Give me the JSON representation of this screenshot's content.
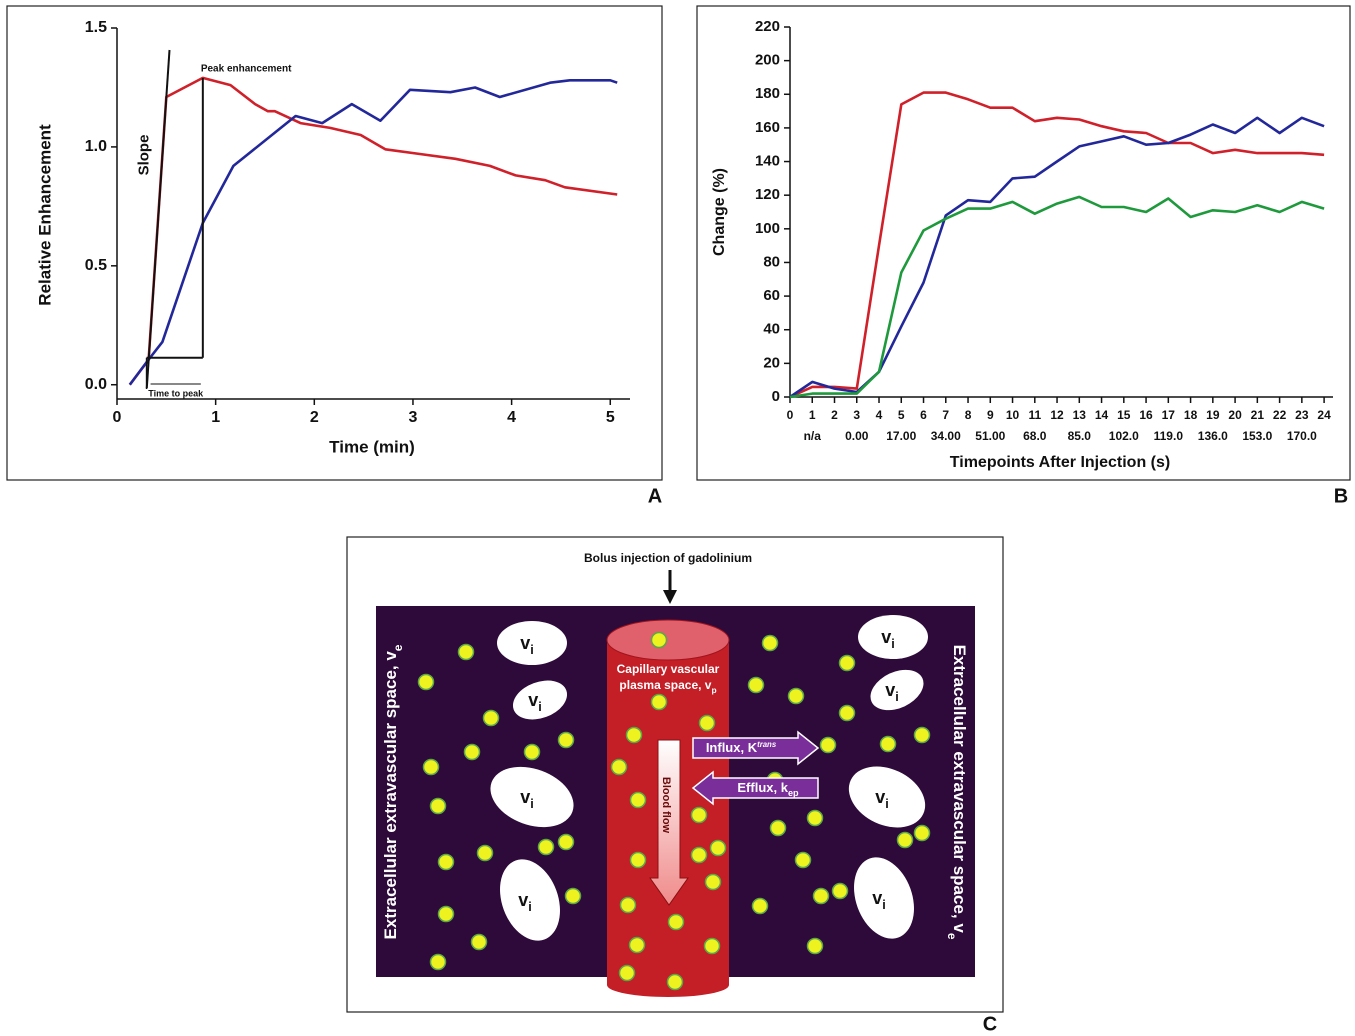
{
  "chart_data": [
    {
      "type": "line",
      "panel_label": "A",
      "xlabel": "Time (min)",
      "ylabel": "Relative Enhancement",
      "xlim": [
        0,
        5.2
      ],
      "ylim": [
        -0.06,
        1.5
      ],
      "xticks": [
        0,
        1,
        2,
        3,
        4,
        5
      ],
      "yticks": [
        {
          "value": 0,
          "label": "0.0"
        },
        0.5,
        {
          "value": 1,
          "label": "1.0"
        },
        {
          "value": 1.5,
          "label": "1.5"
        }
      ],
      "annotations": [
        "Peak enhancement",
        "Slope",
        "Time to peak"
      ],
      "series": [
        {
          "color": "#d0202a",
          "x": [
            0.13,
            0.32,
            0.5,
            0.87,
            1.15,
            1.4,
            1.53,
            1.6,
            1.86,
            2.16,
            2.47,
            2.72,
            3.07,
            3.43,
            3.78,
            4.04,
            4.34,
            4.54,
            5.07
          ],
          "values": [
            0,
            0.105,
            1.21,
            1.29,
            1.26,
            1.18,
            1.15,
            1.15,
            1.1,
            1.08,
            1.05,
            0.99,
            0.97,
            0.95,
            0.92,
            0.88,
            0.86,
            0.83,
            0.8
          ]
        },
        {
          "color": "#22289a",
          "x": [
            0.13,
            0.31,
            0.46,
            0.87,
            1.18,
            1.81,
            2.08,
            2.38,
            2.67,
            2.97,
            3.38,
            3.63,
            3.88,
            4.39,
            4.59,
            5.0,
            5.07
          ],
          "values": [
            0,
            0.1,
            0.18,
            0.68,
            0.92,
            1.13,
            1.1,
            1.18,
            1.11,
            1.24,
            1.23,
            1.25,
            1.21,
            1.27,
            1.28,
            1.28,
            1.27
          ]
        }
      ]
    },
    {
      "type": "line",
      "panel_label": "B",
      "xlabel": "Timepoints After Injection (s)",
      "ylabel": "Change (%)",
      "xlim": [
        0,
        24.4
      ],
      "ylim": [
        0,
        220
      ],
      "xticks": [
        0,
        1,
        2,
        3,
        4,
        5,
        6,
        7,
        8,
        9,
        10,
        11,
        12,
        13,
        14,
        15,
        16,
        17,
        18,
        19,
        20,
        21,
        22,
        23,
        24
      ],
      "yticks": [
        0,
        20,
        40,
        60,
        80,
        100,
        120,
        140,
        160,
        180,
        200,
        220
      ],
      "x_secondary_ticks": [
        {
          "value": 1,
          "label": "n/a"
        },
        {
          "value": 3,
          "label": "0.00"
        },
        {
          "value": 5,
          "label": "17.00"
        },
        {
          "value": 7,
          "label": "34.00"
        },
        {
          "value": 9,
          "label": "51.00"
        },
        {
          "value": 11,
          "label": "68.0"
        },
        {
          "value": 13,
          "label": "85.0"
        },
        {
          "value": 15,
          "label": "102.0"
        },
        {
          "value": 17,
          "label": "119.0"
        },
        {
          "value": 19,
          "label": "136.0"
        },
        {
          "value": 21,
          "label": "153.0"
        },
        {
          "value": 23,
          "label": "170.0"
        }
      ],
      "x": [
        0,
        1,
        2,
        3,
        4,
        5,
        6,
        7,
        8,
        9,
        10,
        11,
        12,
        13,
        14,
        15,
        16,
        17,
        18,
        19,
        20,
        21,
        22,
        23,
        24
      ],
      "series": [
        {
          "color": "#d0202a",
          "values": [
            0,
            6,
            6,
            5,
            90,
            174,
            181,
            181,
            177,
            172,
            172,
            164,
            166,
            165,
            161,
            158,
            157,
            151,
            151,
            145,
            147,
            145,
            145,
            145,
            144
          ]
        },
        {
          "color": "#22289a",
          "values": [
            0,
            9,
            5,
            3,
            15,
            42,
            68,
            108,
            117,
            116,
            130,
            131,
            140,
            149,
            152,
            155,
            150,
            151,
            156,
            162,
            157,
            166,
            157,
            166,
            161
          ]
        },
        {
          "color": "#1e9a3c",
          "values": [
            0,
            2,
            2,
            2,
            15,
            74,
            99,
            106,
            112,
            112,
            116,
            109,
            115,
            119,
            113,
            113,
            110,
            118,
            107,
            111,
            110,
            114,
            110,
            116,
            112
          ]
        }
      ]
    }
  ],
  "diagram": {
    "panel_label": "C",
    "injection": "Bolus injection of gadolinium",
    "ees_left": {
      "text": "Extracellular extravascular space, v",
      "sub": "e"
    },
    "ees_right": {
      "text": "Extracellular extravascular space, v",
      "sub": "e"
    },
    "capillary": {
      "line1": "Capillary vascular",
      "line2": "plasma space, v",
      "sub": "p"
    },
    "blood_flow": "Blood flow",
    "influx": {
      "text": "Influx, K",
      "sup": "trans"
    },
    "efflux": {
      "text": "Efflux, k",
      "sub": "ep"
    },
    "cells": [
      {
        "text": "v",
        "sub": "i"
      },
      {
        "text": "v",
        "sub": "i"
      },
      {
        "text": "v",
        "sub": "i"
      },
      {
        "text": "v",
        "sub": "i"
      },
      {
        "text": "v",
        "sub": "i"
      },
      {
        "text": "v",
        "sub": "i"
      },
      {
        "text": "v",
        "sub": "i"
      },
      {
        "text": "v",
        "sub": "i"
      }
    ]
  }
}
